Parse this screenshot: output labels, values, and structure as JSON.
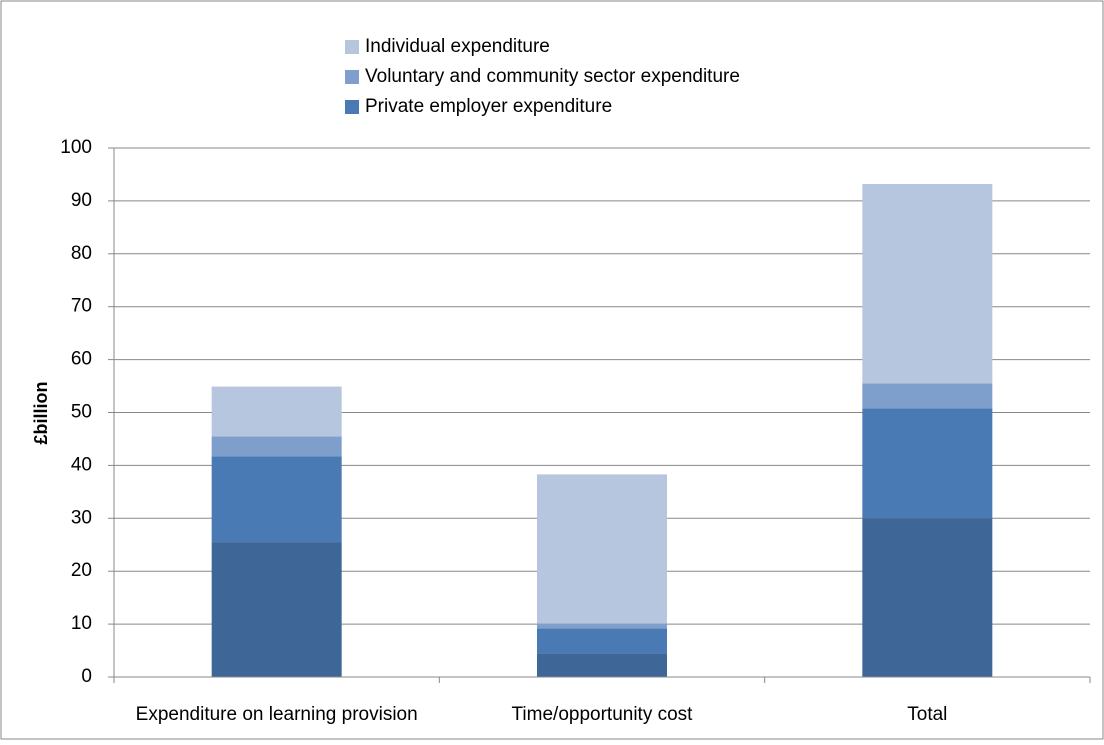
{
  "chart_data": {
    "type": "stacked_bar",
    "y_label": "£billion",
    "categories": [
      "Expenditure on learning provision",
      "Time/opportunity cost",
      "Total"
    ],
    "series": [
      {
        "name": null,
        "color": "#3e6697",
        "values": [
          25.5,
          4.5,
          30
        ]
      },
      {
        "name": "Private employer expenditure",
        "color": "#4a7ab4",
        "values": [
          16.2,
          4.7,
          20.8
        ]
      },
      {
        "name": "Voluntary and community sector expenditure",
        "color": "#7e9ecb",
        "values": [
          3.8,
          0.9,
          4.7
        ]
      },
      {
        "name": "Individual expenditure",
        "color": "#b7c6df",
        "values": [
          9.4,
          28.2,
          37.7
        ]
      }
    ],
    "ylim": [
      0,
      100
    ],
    "yticks": [
      0,
      10,
      20,
      30,
      40,
      50,
      60,
      70,
      80,
      90,
      100
    ],
    "grid": true
  }
}
